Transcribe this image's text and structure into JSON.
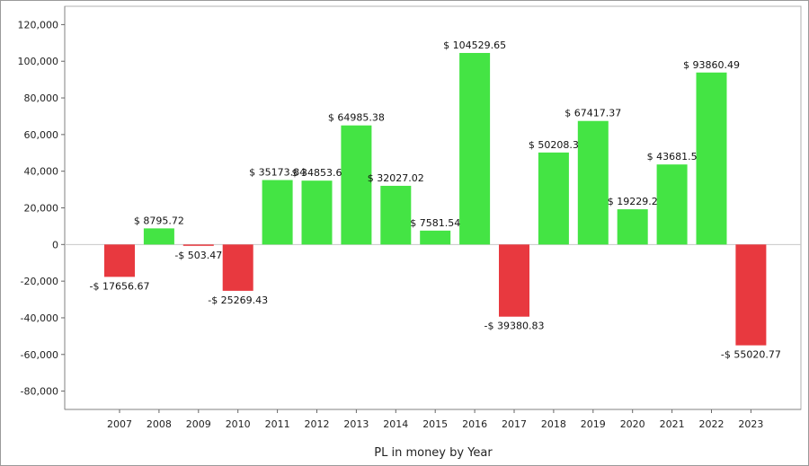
{
  "chart_data": {
    "type": "bar",
    "xlabel": "PL in money by Year",
    "ylabel": "",
    "ylim": [
      -90000,
      130000
    ],
    "yticks": [
      {
        "value": -80000,
        "label": "-80,000"
      },
      {
        "value": -60000,
        "label": "-60,000"
      },
      {
        "value": -40000,
        "label": "-40,000"
      },
      {
        "value": -20000,
        "label": "-20,000"
      },
      {
        "value": 0,
        "label": "0"
      },
      {
        "value": 20000,
        "label": "20,000"
      },
      {
        "value": 40000,
        "label": "40,000"
      },
      {
        "value": 60000,
        "label": "60,000"
      },
      {
        "value": 80000,
        "label": "80,000"
      },
      {
        "value": 100000,
        "label": "100,000"
      },
      {
        "value": 120000,
        "label": "120,000"
      }
    ],
    "grid": true,
    "colors": {
      "positive": "#44e444",
      "negative": "#e8393f"
    },
    "categories": [
      "2007",
      "2008",
      "2009",
      "2010",
      "2011",
      "2012",
      "2013",
      "2014",
      "2015",
      "2016",
      "2017",
      "2018",
      "2019",
      "2020",
      "2021",
      "2022",
      "2023"
    ],
    "values": [
      -17656.67,
      8795.72,
      -503.47,
      -25269.43,
      35173.84,
      34853.6,
      64985.38,
      32027.02,
      7581.54,
      104529.65,
      -39380.83,
      50208.3,
      67417.37,
      19229.2,
      43681.5,
      93860.49,
      -55020.77
    ],
    "data_labels": [
      "-$ 17656.67",
      "$ 8795.72",
      "-$ 503.47",
      "-$ 25269.43",
      "$ 35173.84",
      "$ 34853.6",
      "$ 64985.38",
      "$ 32027.02",
      "$ 7581.54",
      "$ 104529.65",
      "-$ 39380.83",
      "$ 50208.3",
      "$ 67417.37",
      "$ 19229.2",
      "$ 43681.5",
      "$ 93860.49",
      "-$ 55020.77"
    ]
  }
}
